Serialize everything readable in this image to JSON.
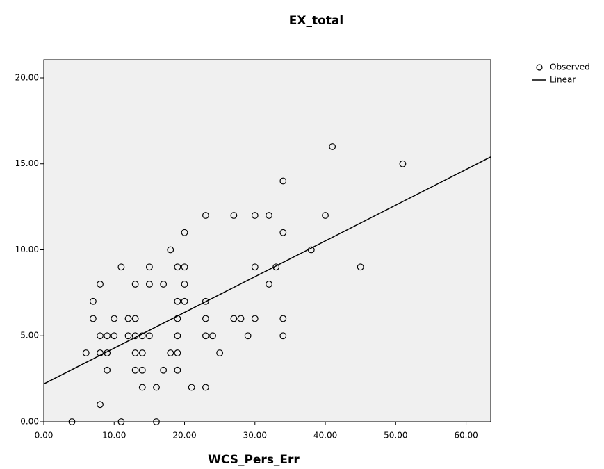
{
  "chart_data": {
    "type": "scatter",
    "title": "EX_total",
    "x_label": "WCS_Pers_Err",
    "xlim": [
      0,
      63.5
    ],
    "ylim": [
      0,
      21.05
    ],
    "xticks": [
      {
        "value": 0,
        "label": "0.00"
      },
      {
        "value": 10,
        "label": "10.00"
      },
      {
        "value": 20,
        "label": "20.00"
      },
      {
        "value": 30,
        "label": "30.00"
      },
      {
        "value": 40,
        "label": "40.00"
      },
      {
        "value": 50,
        "label": "50.00"
      },
      {
        "value": 60,
        "label": "60.00"
      }
    ],
    "yticks": [
      {
        "value": 0,
        "label": "0.00"
      },
      {
        "value": 5,
        "label": "5.00"
      },
      {
        "value": 10,
        "label": "10.00"
      },
      {
        "value": 15,
        "label": "15.00"
      },
      {
        "value": 20,
        "label": "20.00"
      }
    ],
    "plot_background": "#f0f0f0",
    "series": [
      {
        "name": "Observed",
        "color": "#000000",
        "x": [
          4,
          11,
          16,
          8,
          6,
          7,
          7,
          8,
          8,
          8,
          9,
          9,
          9,
          10,
          10,
          11,
          12,
          12,
          13,
          13,
          13,
          13,
          13,
          14,
          14,
          14,
          14,
          15,
          15,
          15,
          16,
          17,
          17,
          18,
          18,
          19,
          19,
          19,
          19,
          19,
          19,
          20,
          20,
          20,
          20,
          21,
          23,
          23,
          23,
          23,
          23,
          24,
          25,
          27,
          27,
          28,
          29,
          30,
          30,
          30,
          32,
          32,
          33,
          34,
          34,
          34,
          34,
          38,
          40,
          41,
          45,
          51
        ],
        "values": [
          0,
          0,
          0,
          1,
          4,
          7,
          6,
          8,
          5,
          4,
          5,
          4,
          3,
          6,
          5,
          9,
          6,
          5,
          8,
          6,
          5,
          4,
          3,
          5,
          4,
          3,
          2,
          9,
          8,
          5,
          2,
          8,
          3,
          10,
          4,
          9,
          7,
          6,
          5,
          4,
          3,
          11,
          9,
          8,
          7,
          2,
          12,
          7,
          6,
          5,
          2,
          5,
          4,
          12,
          6,
          6,
          5,
          12,
          9,
          6,
          12,
          8,
          9,
          14,
          11,
          6,
          5,
          10,
          12,
          16,
          9,
          15
        ]
      },
      {
        "name": "Linear",
        "color": "#000000",
        "x": [
          0,
          63.5
        ],
        "values": [
          2.2,
          15.4
        ]
      }
    ]
  }
}
